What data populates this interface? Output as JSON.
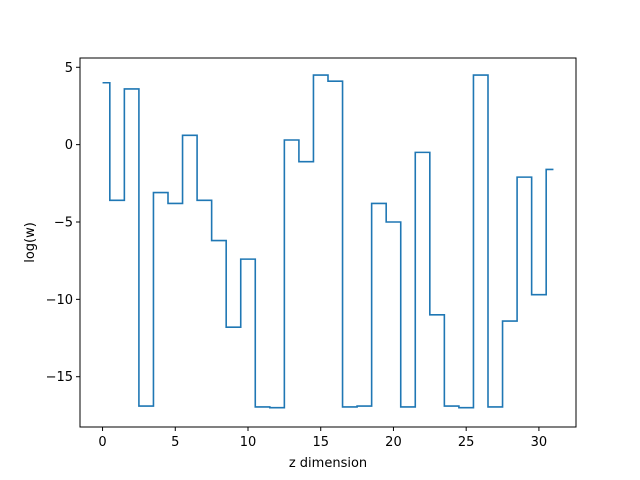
{
  "chart_data": {
    "type": "line",
    "drawstyle": "steps-mid",
    "xlabel": "z dimension",
    "ylabel": "log(w)",
    "xlim": [
      -1.55,
      32.55
    ],
    "ylim": [
      -18.25,
      5.6
    ],
    "xticks": [
      0,
      5,
      10,
      15,
      20,
      25,
      30
    ],
    "yticks": [
      5,
      0,
      -5,
      -10,
      -15
    ],
    "ytick_labels": [
      "5",
      "0",
      "−5",
      "−10",
      "−15"
    ],
    "grid": false,
    "line_color": "#1f77b4",
    "series": [
      {
        "x": [
          0,
          1,
          2,
          3,
          4,
          5,
          6,
          7,
          8,
          9,
          10,
          11,
          12,
          13,
          14,
          15,
          16,
          17,
          18,
          19,
          20,
          21,
          22,
          23,
          24,
          25,
          26,
          27,
          28,
          29,
          30,
          31
        ],
        "values": [
          4.0,
          -3.6,
          3.6,
          -16.9,
          -3.1,
          -3.8,
          0.6,
          -3.6,
          -6.2,
          -11.8,
          -7.4,
          -16.95,
          -17.0,
          0.3,
          -1.1,
          4.5,
          4.1,
          -16.95,
          -16.9,
          -3.8,
          -5.0,
          -16.95,
          -0.5,
          -11.0,
          -16.9,
          -17.0,
          4.5,
          -16.95,
          -11.4,
          -2.1,
          -9.7,
          -1.6
        ]
      }
    ]
  }
}
